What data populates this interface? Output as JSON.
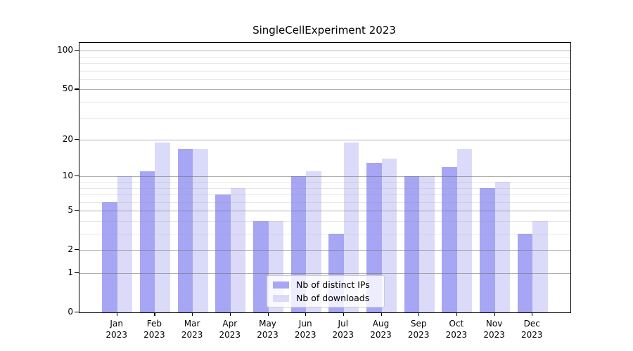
{
  "chart_data": {
    "type": "bar",
    "title": "SingleCellExperiment 2023",
    "categories": [
      {
        "month": "Jan",
        "year": "2023"
      },
      {
        "month": "Feb",
        "year": "2023"
      },
      {
        "month": "Mar",
        "year": "2023"
      },
      {
        "month": "Apr",
        "year": "2023"
      },
      {
        "month": "May",
        "year": "2023"
      },
      {
        "month": "Jun",
        "year": "2023"
      },
      {
        "month": "Jul",
        "year": "2023"
      },
      {
        "month": "Aug",
        "year": "2023"
      },
      {
        "month": "Sep",
        "year": "2023"
      },
      {
        "month": "Oct",
        "year": "2023"
      },
      {
        "month": "Nov",
        "year": "2023"
      },
      {
        "month": "Dec",
        "year": "2023"
      }
    ],
    "series": [
      {
        "name": "Nb of distinct IPs",
        "color": "#a6a6f4",
        "values": [
          6,
          11,
          17,
          7,
          4,
          10,
          3,
          13,
          10,
          12,
          8,
          3
        ]
      },
      {
        "name": "Nb of downloads",
        "color": "#dbdbf9",
        "values": [
          10,
          19,
          17,
          8,
          4,
          11,
          19,
          14,
          10,
          17,
          9,
          4
        ]
      }
    ],
    "y_axis": {
      "ticks": [
        0,
        1,
        2,
        5,
        10,
        20,
        50,
        100
      ],
      "minor_ticks": [
        3,
        4,
        6,
        7,
        8,
        9,
        30,
        40,
        60,
        70,
        80,
        90
      ],
      "scale": "log1p",
      "max": 115
    },
    "xlabel": "",
    "ylabel": "",
    "grid": true,
    "legend_position": "lower center"
  }
}
